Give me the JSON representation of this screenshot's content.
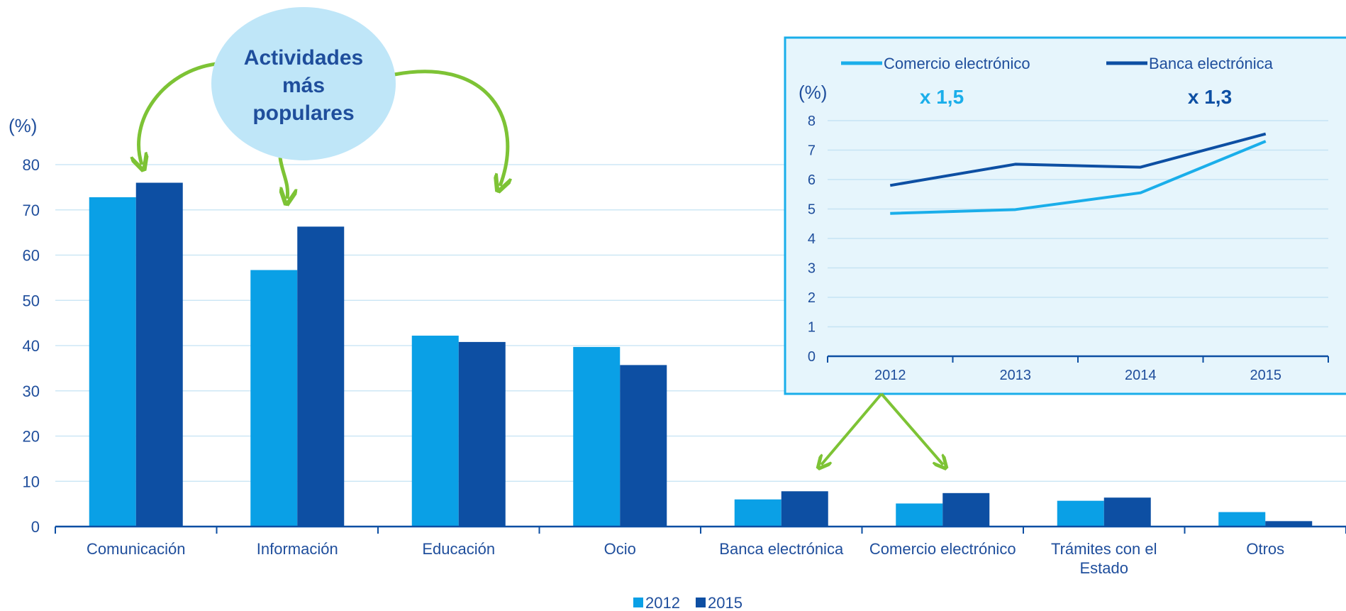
{
  "chart_data": [
    {
      "type": "bar",
      "title": "",
      "xlabel": "",
      "ylabel": "(%)",
      "ylim": [
        0,
        80
      ],
      "yticks": [
        0,
        10,
        20,
        30,
        40,
        50,
        60,
        70,
        80
      ],
      "grid": true,
      "legend_position": "bottom-center",
      "categories": [
        [
          "Comunicación"
        ],
        [
          "Información"
        ],
        [
          "Educación"
        ],
        [
          "Ocio"
        ],
        [
          "Banca electrónica"
        ],
        [
          "Comercio electrónico"
        ],
        [
          "Trámites con el",
          "Estado"
        ],
        [
          "Otros"
        ]
      ],
      "series": [
        {
          "name": "2012",
          "color": "#0aa0e6",
          "values": [
            72.8,
            56.7,
            42.2,
            39.7,
            6.0,
            5.1,
            5.7,
            3.2
          ]
        },
        {
          "name": "2015",
          "color": "#0d4fa3",
          "values": [
            76.0,
            66.3,
            40.8,
            35.7,
            7.8,
            7.4,
            6.4,
            1.2
          ]
        }
      ],
      "annotation": [
        "Actividades",
        "más",
        "populares"
      ]
    },
    {
      "type": "line",
      "title": "",
      "ylabel": "(%)",
      "ylim": [
        0,
        8
      ],
      "yticks": [
        0,
        1,
        2,
        3,
        4,
        5,
        6,
        7,
        8
      ],
      "grid": true,
      "legend_position": "top",
      "x": [
        "2012",
        "2013",
        "2014",
        "2015"
      ],
      "series": [
        {
          "name": "Comercio electrónico",
          "color": "#1aaeea",
          "values": [
            4.85,
            4.98,
            5.55,
            7.3
          ],
          "multiplier": "x 1,5"
        },
        {
          "name": "Banca electrónica",
          "color": "#0d4fa3",
          "values": [
            5.8,
            6.52,
            6.42,
            7.55
          ],
          "multiplier": "x 1,3"
        }
      ]
    }
  ]
}
